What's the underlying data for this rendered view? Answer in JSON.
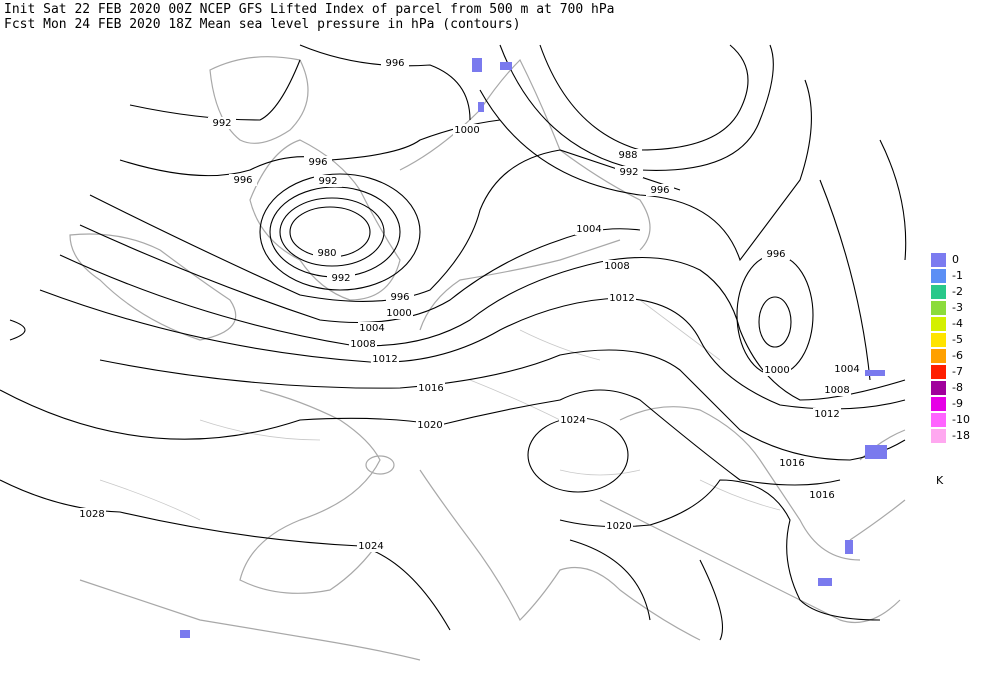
{
  "header": {
    "line1": "Init  Sat 22 FEB 2020 00Z  NCEP GFS Lifted Index of parcel from 500 m at 700 hPa",
    "line2": "Fcst Mon 24 FEB 2020 18Z  Mean sea level pressure in hPa (contours)"
  },
  "contour_labels": [
    "996",
    "992",
    "996",
    "996",
    "992",
    "980",
    "992",
    "996",
    "1000",
    "1004",
    "1008",
    "1012",
    "1016",
    "1020",
    "1028",
    "1024",
    "1024",
    "1020",
    "1000",
    "1004",
    "1008",
    "1012",
    "988",
    "992",
    "996",
    "996",
    "1000",
    "1004",
    "1008",
    "1012",
    "1016",
    "1016"
  ],
  "legend": {
    "unit": "K",
    "entries": [
      {
        "label": "0",
        "color": "#7b7bf0"
      },
      {
        "label": "-1",
        "color": "#5b8ff5"
      },
      {
        "label": "-2",
        "color": "#28c88a"
      },
      {
        "label": "-3",
        "color": "#8cdc3c"
      },
      {
        "label": "-4",
        "color": "#d4f000"
      },
      {
        "label": "-5",
        "color": "#ffe400"
      },
      {
        "label": "-6",
        "color": "#ffa000"
      },
      {
        "label": "-7",
        "color": "#ff1e00"
      },
      {
        "label": "-8",
        "color": "#a0009c"
      },
      {
        "label": "-9",
        "color": "#e600e6"
      },
      {
        "label": "-10",
        "color": "#ff64ff"
      },
      {
        "label": "-18",
        "color": "#ffa8f0"
      }
    ]
  }
}
